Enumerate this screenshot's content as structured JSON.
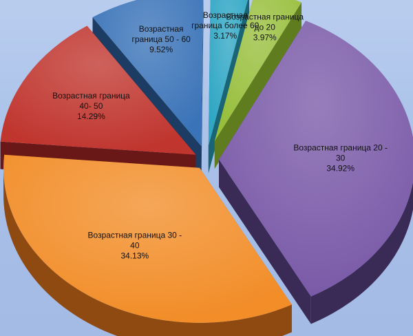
{
  "chart_data": {
    "type": "pie",
    "style": "3d-exploded",
    "labels_position": "on-slices",
    "legend": "none",
    "categories": [
      "Возрастная граница до 20",
      "Возрастная граница 20 - 30",
      "Возрастная граница 30 - 40",
      "Возрастная граница 40- 50",
      "Возрастная граница 50 - 60",
      "Возрастная граница более 60"
    ],
    "values": [
      3.97,
      34.92,
      34.13,
      14.29,
      9.52,
      3.17
    ],
    "value_labels": [
      "3.97%",
      "34.92%",
      "34.13%",
      "14.29%",
      "9.52%",
      "3.17%"
    ],
    "label_lines": [
      [
        "Возрастная граница",
        "до 20",
        "3.97%"
      ],
      [
        "Возрастная граница 20 -",
        "30",
        "34.92%"
      ],
      [
        "Возрастная граница 30 -",
        "40",
        "34.13%"
      ],
      [
        "Возрастная граница",
        "40- 50",
        "14.29%"
      ],
      [
        "Возрастная",
        "граница 50 - 60",
        "9.52%"
      ],
      [
        "Возрастная",
        "граница более 60",
        "3.17%"
      ]
    ],
    "colors": [
      "#98bf3c",
      "#7a5aa8",
      "#f28d28",
      "#c0352e",
      "#3a73b8",
      "#2ea6c4"
    ],
    "side_colors": [
      "#5f7d1f",
      "#3a2a56",
      "#8f4a12",
      "#6a1717",
      "#1d3c63",
      "#1a6575"
    ]
  }
}
